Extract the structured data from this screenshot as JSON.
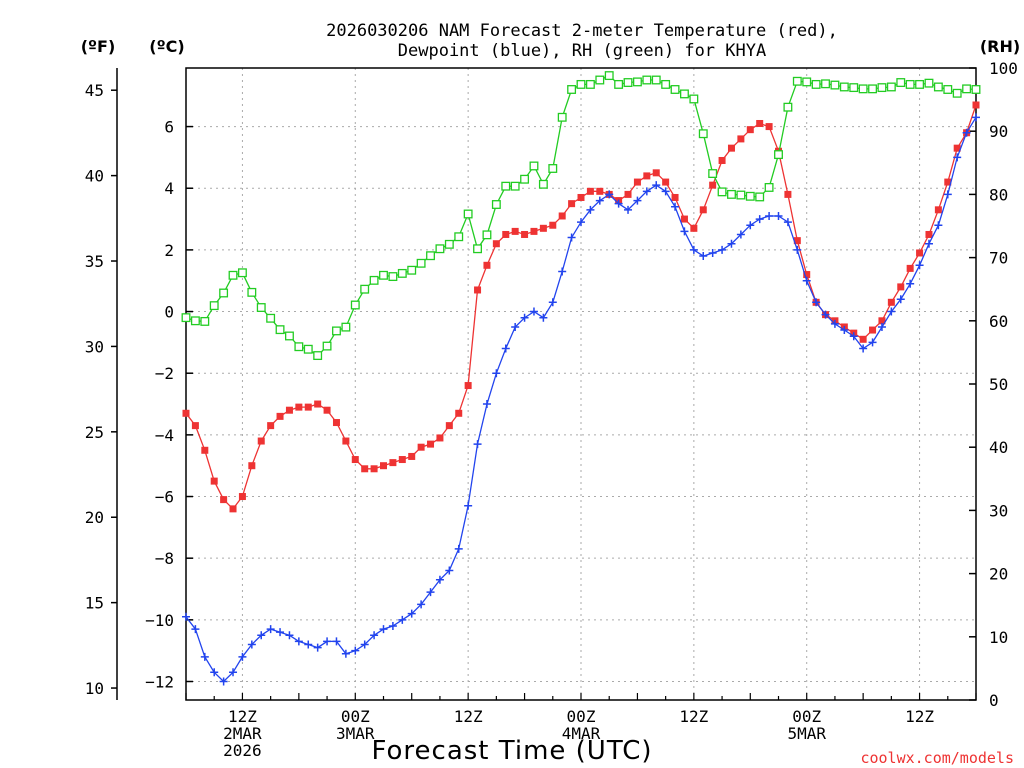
{
  "chart_data": {
    "type": "line",
    "title_line1": "2026030206 NAM Forecast 2-meter Temperature (red),",
    "title_line2": "Dewpoint (blue), RH (green) for KHYA",
    "xlabel": "Forecast Time (UTC)",
    "watermark": "coolwx.com/models",
    "axes": {
      "fahrenheit": {
        "label": "(ºF)",
        "range": [
          9.3,
          46.3
        ],
        "ticks": [
          10,
          15,
          20,
          25,
          30,
          35,
          40,
          45
        ]
      },
      "celsius": {
        "label": "(ºC)",
        "range": [
          -12.6,
          7.9
        ],
        "ticks": [
          -12,
          -10,
          -8,
          -6,
          -4,
          -2,
          0,
          2,
          4,
          6
        ]
      },
      "rh": {
        "label": "(RH)",
        "range": [
          0,
          100
        ],
        "ticks": [
          0,
          10,
          20,
          30,
          40,
          50,
          60,
          70,
          80,
          90,
          100
        ]
      },
      "time": {
        "range": [
          0,
          84
        ],
        "unit": "forecast hour"
      }
    },
    "x_ticks": [
      {
        "hour": 6,
        "line1": "12Z",
        "line2": "2MAR",
        "line3": "2026"
      },
      {
        "hour": 18,
        "line1": "00Z",
        "line2": "3MAR",
        "line3": ""
      },
      {
        "hour": 30,
        "line1": "12Z",
        "line2": "",
        "line3": ""
      },
      {
        "hour": 42,
        "line1": "00Z",
        "line2": "4MAR",
        "line3": ""
      },
      {
        "hour": 54,
        "line1": "12Z",
        "line2": "",
        "line3": ""
      },
      {
        "hour": 66,
        "line1": "00Z",
        "line2": "5MAR",
        "line3": ""
      },
      {
        "hour": 78,
        "line1": "12Z",
        "line2": "",
        "line3": ""
      }
    ],
    "series": [
      {
        "name": "Temperature",
        "unit": "°C",
        "color": "#ee3333",
        "marker": "filled-square",
        "values": [
          [
            0,
            -3.3
          ],
          [
            1,
            -3.7
          ],
          [
            2,
            -4.5
          ],
          [
            3,
            -5.5
          ],
          [
            4,
            -6.1
          ],
          [
            5,
            -6.4
          ],
          [
            6,
            -6.0
          ],
          [
            7,
            -5.0
          ],
          [
            8,
            -4.2
          ],
          [
            9,
            -3.7
          ],
          [
            10,
            -3.4
          ],
          [
            11,
            -3.2
          ],
          [
            12,
            -3.1
          ],
          [
            13,
            -3.1
          ],
          [
            14,
            -3.0
          ],
          [
            15,
            -3.2
          ],
          [
            16,
            -3.6
          ],
          [
            17,
            -4.2
          ],
          [
            18,
            -4.8
          ],
          [
            19,
            -5.1
          ],
          [
            20,
            -5.1
          ],
          [
            21,
            -5.0
          ],
          [
            22,
            -4.9
          ],
          [
            23,
            -4.8
          ],
          [
            24,
            -4.7
          ],
          [
            25,
            -4.4
          ],
          [
            26,
            -4.3
          ],
          [
            27,
            -4.1
          ],
          [
            28,
            -3.7
          ],
          [
            29,
            -3.3
          ],
          [
            30,
            -2.4
          ],
          [
            31,
            0.7
          ],
          [
            32,
            1.5
          ],
          [
            33,
            2.2
          ],
          [
            34,
            2.5
          ],
          [
            35,
            2.6
          ],
          [
            36,
            2.5
          ],
          [
            37,
            2.6
          ],
          [
            38,
            2.7
          ],
          [
            39,
            2.8
          ],
          [
            40,
            3.1
          ],
          [
            41,
            3.5
          ],
          [
            42,
            3.7
          ],
          [
            43,
            3.9
          ],
          [
            44,
            3.9
          ],
          [
            45,
            3.8
          ],
          [
            46,
            3.6
          ],
          [
            47,
            3.8
          ],
          [
            48,
            4.2
          ],
          [
            49,
            4.4
          ],
          [
            50,
            4.5
          ],
          [
            51,
            4.2
          ],
          [
            52,
            3.7
          ],
          [
            53,
            3.0
          ],
          [
            54,
            2.7
          ],
          [
            55,
            3.3
          ],
          [
            56,
            4.1
          ],
          [
            57,
            4.9
          ],
          [
            58,
            5.3
          ],
          [
            59,
            5.6
          ],
          [
            60,
            5.9
          ],
          [
            61,
            6.1
          ],
          [
            62,
            6.0
          ],
          [
            63,
            5.2
          ],
          [
            64,
            3.8
          ],
          [
            65,
            2.3
          ],
          [
            66,
            1.2
          ],
          [
            67,
            0.3
          ],
          [
            68,
            -0.1
          ],
          [
            69,
            -0.3
          ],
          [
            70,
            -0.5
          ],
          [
            71,
            -0.7
          ],
          [
            72,
            -0.9
          ],
          [
            73,
            -0.6
          ],
          [
            74,
            -0.3
          ],
          [
            75,
            0.3
          ],
          [
            76,
            0.8
          ],
          [
            77,
            1.4
          ],
          [
            78,
            1.9
          ],
          [
            79,
            2.5
          ],
          [
            80,
            3.3
          ],
          [
            81,
            4.2
          ],
          [
            82,
            5.3
          ],
          [
            83,
            5.8
          ],
          [
            84,
            6.7
          ]
        ]
      },
      {
        "name": "Dewpoint",
        "unit": "°C",
        "color": "#2244ee",
        "marker": "plus",
        "values": [
          [
            0,
            -9.9
          ],
          [
            1,
            -10.3
          ],
          [
            2,
            -11.2
          ],
          [
            3,
            -11.7
          ],
          [
            4,
            -12.0
          ],
          [
            5,
            -11.7
          ],
          [
            6,
            -11.2
          ],
          [
            7,
            -10.8
          ],
          [
            8,
            -10.5
          ],
          [
            9,
            -10.3
          ],
          [
            10,
            -10.4
          ],
          [
            11,
            -10.5
          ],
          [
            12,
            -10.7
          ],
          [
            13,
            -10.8
          ],
          [
            14,
            -10.9
          ],
          [
            15,
            -10.7
          ],
          [
            16,
            -10.7
          ],
          [
            17,
            -11.1
          ],
          [
            18,
            -11.0
          ],
          [
            19,
            -10.8
          ],
          [
            20,
            -10.5
          ],
          [
            21,
            -10.3
          ],
          [
            22,
            -10.2
          ],
          [
            23,
            -10.0
          ],
          [
            24,
            -9.8
          ],
          [
            25,
            -9.5
          ],
          [
            26,
            -9.1
          ],
          [
            27,
            -8.7
          ],
          [
            28,
            -8.4
          ],
          [
            29,
            -7.7
          ],
          [
            30,
            -6.3
          ],
          [
            31,
            -4.3
          ],
          [
            32,
            -3.0
          ],
          [
            33,
            -2.0
          ],
          [
            34,
            -1.2
          ],
          [
            35,
            -0.5
          ],
          [
            36,
            -0.2
          ],
          [
            37,
            0.0
          ],
          [
            38,
            -0.2
          ],
          [
            39,
            0.3
          ],
          [
            40,
            1.3
          ],
          [
            41,
            2.4
          ],
          [
            42,
            2.9
          ],
          [
            43,
            3.3
          ],
          [
            44,
            3.6
          ],
          [
            45,
            3.8
          ],
          [
            46,
            3.5
          ],
          [
            47,
            3.3
          ],
          [
            48,
            3.6
          ],
          [
            49,
            3.9
          ],
          [
            50,
            4.1
          ],
          [
            51,
            3.9
          ],
          [
            52,
            3.4
          ],
          [
            53,
            2.6
          ],
          [
            54,
            2.0
          ],
          [
            55,
            1.8
          ],
          [
            56,
            1.9
          ],
          [
            57,
            2.0
          ],
          [
            58,
            2.2
          ],
          [
            59,
            2.5
          ],
          [
            60,
            2.8
          ],
          [
            61,
            3.0
          ],
          [
            62,
            3.1
          ],
          [
            63,
            3.1
          ],
          [
            64,
            2.9
          ],
          [
            65,
            2.0
          ],
          [
            66,
            1.0
          ],
          [
            67,
            0.3
          ],
          [
            68,
            -0.1
          ],
          [
            69,
            -0.4
          ],
          [
            70,
            -0.6
          ],
          [
            71,
            -0.8
          ],
          [
            72,
            -1.2
          ],
          [
            73,
            -1.0
          ],
          [
            74,
            -0.5
          ],
          [
            75,
            0.0
          ],
          [
            76,
            0.4
          ],
          [
            77,
            0.9
          ],
          [
            78,
            1.5
          ],
          [
            79,
            2.2
          ],
          [
            80,
            2.8
          ],
          [
            81,
            3.8
          ],
          [
            82,
            5.0
          ],
          [
            83,
            5.8
          ],
          [
            84,
            6.3
          ]
        ]
      },
      {
        "name": "RH",
        "unit": "%",
        "color": "#22cc22",
        "marker": "open-square",
        "values": [
          [
            0,
            60.5
          ],
          [
            1,
            60.0
          ],
          [
            2,
            59.9
          ],
          [
            3,
            62.4
          ],
          [
            4,
            64.4
          ],
          [
            5,
            67.2
          ],
          [
            6,
            67.6
          ],
          [
            7,
            64.5
          ],
          [
            8,
            62.1
          ],
          [
            9,
            60.4
          ],
          [
            10,
            58.6
          ],
          [
            11,
            57.6
          ],
          [
            12,
            55.9
          ],
          [
            13,
            55.5
          ],
          [
            14,
            54.5
          ],
          [
            15,
            56.0
          ],
          [
            16,
            58.4
          ],
          [
            17,
            59.0
          ],
          [
            18,
            62.5
          ],
          [
            19,
            65.0
          ],
          [
            20,
            66.4
          ],
          [
            21,
            67.2
          ],
          [
            22,
            67.0
          ],
          [
            23,
            67.5
          ],
          [
            24,
            68.0
          ],
          [
            25,
            69.1
          ],
          [
            26,
            70.3
          ],
          [
            27,
            71.4
          ],
          [
            28,
            72.1
          ],
          [
            29,
            73.3
          ],
          [
            30,
            76.9
          ],
          [
            31,
            71.4
          ],
          [
            32,
            73.6
          ],
          [
            33,
            78.4
          ],
          [
            34,
            81.3
          ],
          [
            35,
            81.3
          ],
          [
            36,
            82.4
          ],
          [
            37,
            84.5
          ],
          [
            38,
            81.6
          ],
          [
            39,
            84.1
          ],
          [
            40,
            92.2
          ],
          [
            41,
            96.6
          ],
          [
            42,
            97.4
          ],
          [
            43,
            97.4
          ],
          [
            44,
            98.1
          ],
          [
            45,
            98.8
          ],
          [
            46,
            97.4
          ],
          [
            47,
            97.7
          ],
          [
            48,
            97.8
          ],
          [
            49,
            98.1
          ],
          [
            50,
            98.1
          ],
          [
            51,
            97.4
          ],
          [
            52,
            96.6
          ],
          [
            53,
            95.9
          ],
          [
            54,
            95.1
          ],
          [
            55,
            89.6
          ],
          [
            56,
            83.3
          ],
          [
            57,
            80.4
          ],
          [
            58,
            80.0
          ],
          [
            59,
            79.9
          ],
          [
            60,
            79.7
          ],
          [
            61,
            79.6
          ],
          [
            62,
            81.1
          ],
          [
            63,
            86.3
          ],
          [
            64,
            93.8
          ],
          [
            65,
            97.9
          ],
          [
            66,
            97.8
          ],
          [
            67,
            97.4
          ],
          [
            68,
            97.5
          ],
          [
            69,
            97.3
          ],
          [
            70,
            97.0
          ],
          [
            71,
            96.9
          ],
          [
            72,
            96.7
          ],
          [
            73,
            96.7
          ],
          [
            74,
            96.9
          ],
          [
            75,
            97.0
          ],
          [
            76,
            97.7
          ],
          [
            77,
            97.4
          ],
          [
            78,
            97.4
          ],
          [
            79,
            97.6
          ],
          [
            80,
            97.0
          ],
          [
            81,
            96.6
          ],
          [
            82,
            96.0
          ],
          [
            83,
            96.7
          ],
          [
            84,
            96.6
          ]
        ]
      }
    ]
  }
}
